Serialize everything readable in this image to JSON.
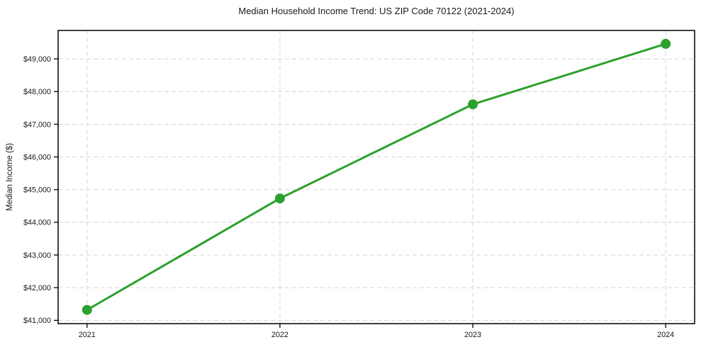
{
  "chart_data": {
    "type": "line",
    "title": "Median Household Income Trend: US ZIP Code 70122 (2021-2024)",
    "xlabel": "",
    "ylabel": "Median Income ($)",
    "x": [
      2021,
      2022,
      2023,
      2024
    ],
    "x_tick_labels": [
      "2021",
      "2022",
      "2023",
      "2024"
    ],
    "series": [
      {
        "name": "Median Household Income",
        "values": [
          41320,
          44730,
          47610,
          49460
        ],
        "color": "#2ca02c",
        "marker": "circle"
      }
    ],
    "y_ticks": [
      41000,
      42000,
      43000,
      44000,
      45000,
      46000,
      47000,
      48000,
      49000
    ],
    "y_tick_labels": [
      "$41,000",
      "$42,000",
      "$43,000",
      "$44,000",
      "$45,000",
      "$46,000",
      "$47,000",
      "$48,000",
      "$49,000"
    ],
    "xlim": [
      2020.85,
      2024.15
    ],
    "ylim": [
      40900,
      49870
    ],
    "grid": true,
    "grid_style": "dashed",
    "grid_color": "#d4d4d4",
    "axis_color": "#000000",
    "background_color": "#ffffff",
    "legend": "none"
  }
}
